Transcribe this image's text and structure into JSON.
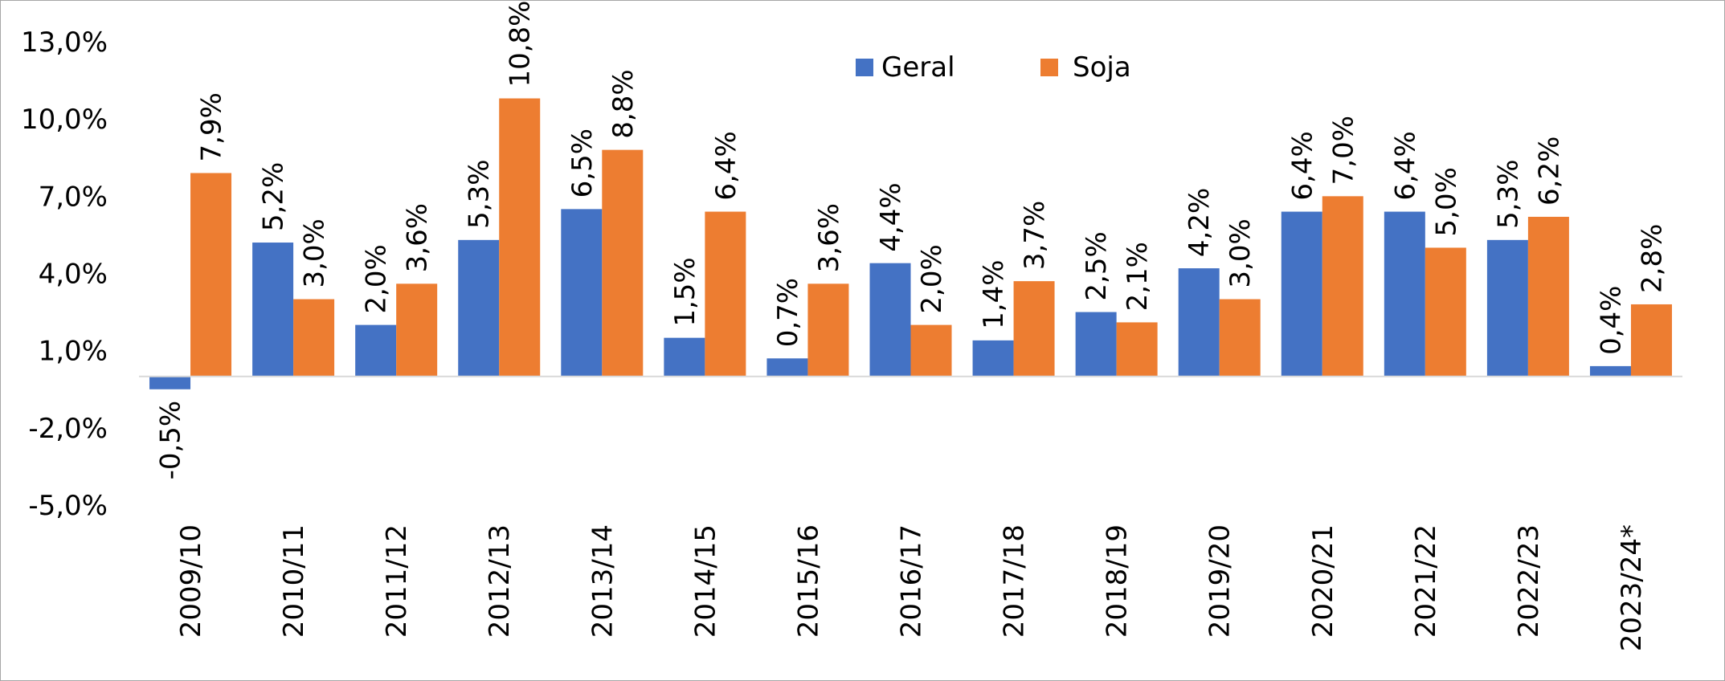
{
  "chart_data": {
    "type": "bar",
    "title": "",
    "xlabel": "",
    "ylabel": "",
    "categories": [
      "2009/10",
      "2010/11",
      "2011/12",
      "2012/13",
      "2013/14",
      "2014/15",
      "2015/16",
      "2016/17",
      "2017/18",
      "2018/19",
      "2019/20",
      "2020/21",
      "2021/22",
      "2022/23",
      "2023/24*"
    ],
    "series": [
      {
        "name": "Geral",
        "color": "#4472C4",
        "values": [
          -0.5,
          5.2,
          2.0,
          5.3,
          6.5,
          1.5,
          0.7,
          4.4,
          1.4,
          2.5,
          4.2,
          6.4,
          6.4,
          5.3,
          0.4
        ],
        "labels": [
          "-0,5%",
          "5,2%",
          "2,0%",
          "5,3%",
          "6,5%",
          "1,5%",
          "0,7%",
          "4,4%",
          "1,4%",
          "2,5%",
          "4,2%",
          "6,4%",
          "6,4%",
          "5,3%",
          "0,4%"
        ]
      },
      {
        "name": "Soja",
        "color": "#ED7D31",
        "values": [
          7.9,
          3.0,
          3.6,
          10.8,
          8.8,
          6.4,
          3.6,
          2.0,
          3.7,
          2.1,
          3.0,
          7.0,
          5.0,
          6.2,
          2.8
        ],
        "labels": [
          "7,9%",
          "3,0%",
          "3,6%",
          "10,8%",
          "8,8%",
          "6,4%",
          "3,6%",
          "2,0%",
          "3,7%",
          "2,1%",
          "3,0%",
          "7,0%",
          "5,0%",
          "6,2%",
          "2,8%"
        ]
      }
    ],
    "y_ticks": [
      13.0,
      10.0,
      7.0,
      4.0,
      1.0,
      -2.0,
      -5.0
    ],
    "y_tick_labels": [
      "13,0%",
      "10,0%",
      "7,0%",
      "4,0%",
      "1,0%",
      "-2,0%",
      "-5,0%"
    ],
    "ylim": [
      -5.0,
      13.0
    ],
    "grid": false,
    "legend": {
      "placement": "top-center"
    },
    "data_labels_rotated": true,
    "category_labels_rotated": true
  }
}
